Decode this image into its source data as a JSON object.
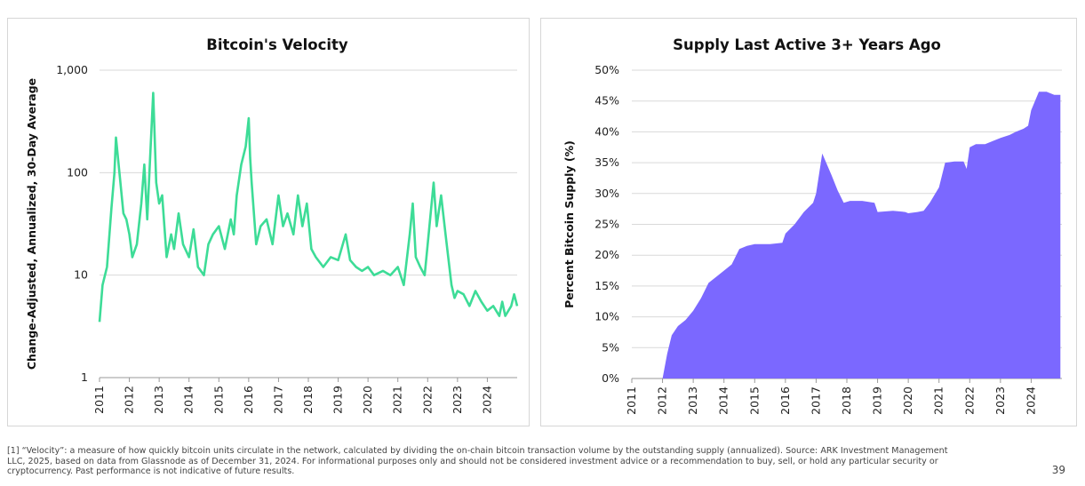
{
  "chart_data": [
    {
      "type": "line",
      "title": "Bitcoin's Velocity",
      "xlabel": "",
      "ylabel": "Change-Adjusted, Annualized, 30-Day Average",
      "y_scale": "log",
      "ylim": [
        1,
        1000
      ],
      "xlim": [
        2011,
        2025
      ],
      "y_ticks": [
        "1",
        "10",
        "100",
        "1,000"
      ],
      "x_ticks": [
        "2011",
        "2012",
        "2013",
        "2014",
        "2015",
        "2016",
        "2017",
        "2018",
        "2019",
        "2020",
        "2021",
        "2022",
        "2023",
        "2024"
      ],
      "grid": "horizontal",
      "color": "#3DDC97",
      "series": [
        {
          "x": [
            2011.0,
            2011.1,
            2011.25,
            2011.4,
            2011.5,
            2011.55,
            2011.7,
            2011.8,
            2011.9,
            2012.0,
            2012.1,
            2012.25,
            2012.4,
            2012.5,
            2012.6,
            2012.7,
            2012.8,
            2012.9,
            2013.0,
            2013.1,
            2013.25,
            2013.4,
            2013.5,
            2013.65,
            2013.8,
            2014.0,
            2014.15,
            2014.3,
            2014.5,
            2014.65,
            2014.8,
            2015.0,
            2015.2,
            2015.4,
            2015.5,
            2015.6,
            2015.75,
            2015.9,
            2016.0,
            2016.05,
            2016.1,
            2016.25,
            2016.4,
            2016.6,
            2016.8,
            2017.0,
            2017.15,
            2017.3,
            2017.5,
            2017.65,
            2017.8,
            2017.95,
            2018.1,
            2018.25,
            2018.5,
            2018.75,
            2019.0,
            2019.25,
            2019.4,
            2019.6,
            2019.8,
            2020.0,
            2020.2,
            2020.5,
            2020.75,
            2021.0,
            2021.2,
            2021.4,
            2021.5,
            2021.6,
            2021.75,
            2021.9,
            2022.0,
            2022.2,
            2022.3,
            2022.45,
            2022.6,
            2022.8,
            2022.9,
            2023.0,
            2023.2,
            2023.4,
            2023.6,
            2023.8,
            2024.0,
            2024.2,
            2024.4,
            2024.5,
            2024.6,
            2024.8,
            2024.9,
            2025.0
          ],
          "y": [
            3.5,
            8.0,
            12.0,
            45.0,
            100.0,
            220.0,
            80.0,
            40.0,
            35.0,
            25.0,
            15.0,
            20.0,
            50.0,
            120.0,
            35.0,
            150.0,
            600.0,
            80.0,
            50.0,
            60.0,
            15.0,
            25.0,
            18.0,
            40.0,
            20.0,
            15.0,
            28.0,
            12.0,
            10.0,
            20.0,
            25.0,
            30.0,
            18.0,
            35.0,
            25.0,
            60.0,
            120.0,
            180.0,
            340.0,
            140.0,
            80.0,
            20.0,
            30.0,
            35.0,
            20.0,
            60.0,
            30.0,
            40.0,
            25.0,
            60.0,
            30.0,
            50.0,
            18.0,
            15.0,
            12.0,
            15.0,
            14.0,
            25.0,
            14.0,
            12.0,
            11.0,
            12.0,
            10.0,
            11.0,
            10.0,
            12.0,
            8.0,
            25.0,
            50.0,
            15.0,
            12.0,
            10.0,
            20.0,
            80.0,
            30.0,
            60.0,
            25.0,
            8.0,
            6.0,
            7.0,
            6.5,
            5.0,
            7.0,
            5.5,
            4.5,
            5.0,
            4.0,
            5.5,
            4.0,
            5.0,
            6.5,
            5.0
          ]
        }
      ]
    },
    {
      "type": "area",
      "title": "Supply Last Active 3+ Years Ago",
      "xlabel": "",
      "ylabel": "Percent Bitcoin Supply (%)",
      "ylim": [
        0,
        50
      ],
      "xlim": [
        2011,
        2025
      ],
      "y_ticks": [
        "0%",
        "5%",
        "10%",
        "15%",
        "20%",
        "25%",
        "30%",
        "35%",
        "40%",
        "45%",
        "50%"
      ],
      "x_ticks": [
        "2011",
        "2012",
        "2013",
        "2014",
        "2015",
        "2016",
        "2017",
        "2018",
        "2019",
        "2020",
        "2021",
        "2022",
        "2023",
        "2024"
      ],
      "grid": "horizontal",
      "color": "#7B68FF",
      "series": [
        {
          "x": [
            2012.0,
            2012.15,
            2012.3,
            2012.5,
            2012.75,
            2013.0,
            2013.25,
            2013.5,
            2013.75,
            2014.0,
            2014.25,
            2014.5,
            2014.75,
            2015.0,
            2015.5,
            2015.9,
            2016.0,
            2016.3,
            2016.6,
            2016.9,
            2017.0,
            2017.2,
            2017.5,
            2017.7,
            2017.9,
            2018.1,
            2018.5,
            2018.9,
            2019.0,
            2019.5,
            2019.9,
            2020.0,
            2020.3,
            2020.5,
            2020.7,
            2021.0,
            2021.2,
            2021.5,
            2021.8,
            2021.9,
            2022.0,
            2022.2,
            2022.5,
            2022.75,
            2023.0,
            2023.3,
            2023.5,
            2023.75,
            2023.9,
            2024.0,
            2024.25,
            2024.5,
            2024.75,
            2024.95
          ],
          "y": [
            0.0,
            4.0,
            7.0,
            8.5,
            9.5,
            11.0,
            13.0,
            15.5,
            16.5,
            17.5,
            18.5,
            21.0,
            21.5,
            21.8,
            21.8,
            22.0,
            23.5,
            25.0,
            27.0,
            28.5,
            30.0,
            36.5,
            33.0,
            30.5,
            28.5,
            28.8,
            28.8,
            28.5,
            27.0,
            27.2,
            27.0,
            26.8,
            27.0,
            27.2,
            28.5,
            31.0,
            35.0,
            35.2,
            35.2,
            34.0,
            37.5,
            38.0,
            38.0,
            38.5,
            39.0,
            39.5,
            40.0,
            40.5,
            41.0,
            43.5,
            46.5,
            46.5,
            46.0,
            46.0
          ]
        }
      ]
    }
  ],
  "footnote": "[1] “Velocity”: a measure of how quickly bitcoin units circulate in the network, calculated by dividing the on-chain bitcoin transaction volume by the outstanding supply (annualized). Source: ARK Investment Management LLC, 2025, based on data from Glassnode as of December 31, 2024. For informational purposes only and should not be considered investment advice or a recommendation to buy, sell, or hold any particular security or cryptocurrency. Past performance is not indicative of future results.",
  "page_number": "39"
}
